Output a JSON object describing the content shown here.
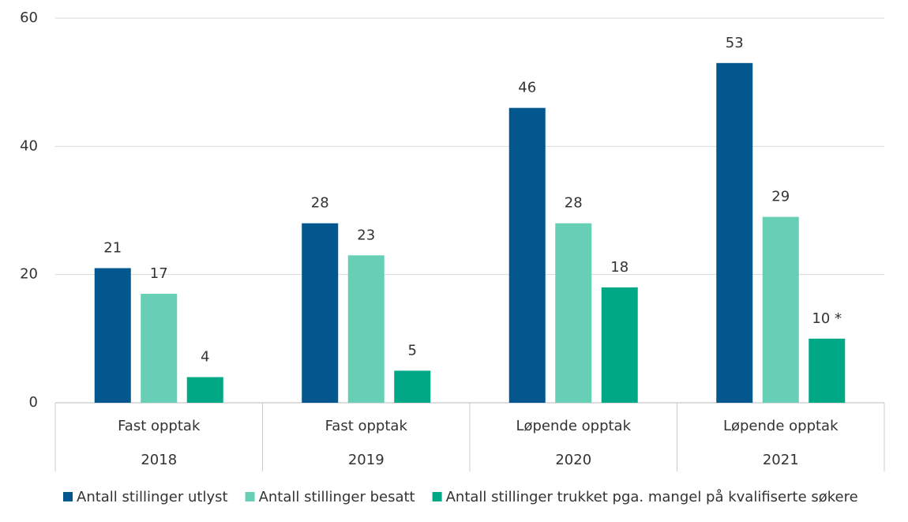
{
  "chart_data": {
    "type": "bar",
    "categories": [
      "2018",
      "2019",
      "2020",
      "2021"
    ],
    "category_groups": [
      "Fast opptak",
      "Fast opptak",
      "Løpende opptak",
      "Løpende opptak"
    ],
    "series": [
      {
        "name": "Antall stillinger utlyst",
        "color": "#02578e",
        "values": [
          21,
          28,
          46,
          53
        ]
      },
      {
        "name": "Antall stillinger besatt",
        "color": "#66cfb5",
        "values": [
          17,
          23,
          28,
          29
        ]
      },
      {
        "name": "Antall stillinger trukket pga. mangel på kvalifiserte søkere",
        "color": "#00a886",
        "values": [
          4,
          5,
          18,
          10
        ],
        "value_labels": [
          "4",
          "5",
          "18",
          "10 *"
        ]
      }
    ],
    "ylim": [
      0,
      60
    ],
    "yticks": [
      0,
      20,
      40,
      60
    ],
    "grid": true,
    "legend": "bottom"
  }
}
